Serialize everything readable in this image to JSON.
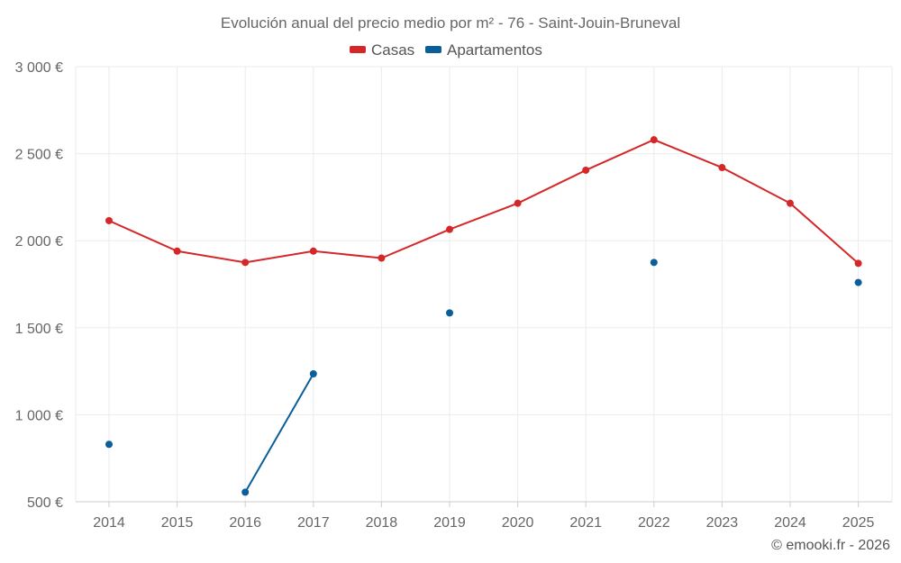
{
  "chart_data": {
    "type": "line",
    "title": "Evolución anual del precio medio por m² - 76 - Saint-Jouin-Bruneval",
    "xlabel": "",
    "ylabel": "",
    "categories": [
      "2014",
      "2015",
      "2016",
      "2017",
      "2018",
      "2019",
      "2020",
      "2021",
      "2022",
      "2023",
      "2024",
      "2025"
    ],
    "ylim": [
      500,
      3000
    ],
    "y_ticks": [
      500,
      1000,
      1500,
      2000,
      2500,
      3000
    ],
    "y_tick_labels": [
      "500 €",
      "1 000 €",
      "1 500 €",
      "2 000 €",
      "2 500 €",
      "3 000 €"
    ],
    "grid": true,
    "legend_position": "top-center",
    "series": [
      {
        "name": "Casas",
        "color": "#d62728",
        "values": [
          2115,
          1940,
          1875,
          1940,
          1900,
          2065,
          2215,
          2405,
          2580,
          2420,
          2215,
          1870
        ]
      },
      {
        "name": "Apartamentos",
        "color": "#0a5f9a",
        "values": [
          830,
          null,
          555,
          1235,
          null,
          1585,
          null,
          null,
          1875,
          null,
          null,
          1760
        ]
      }
    ]
  },
  "copyright": "© emooki.fr - 2026"
}
